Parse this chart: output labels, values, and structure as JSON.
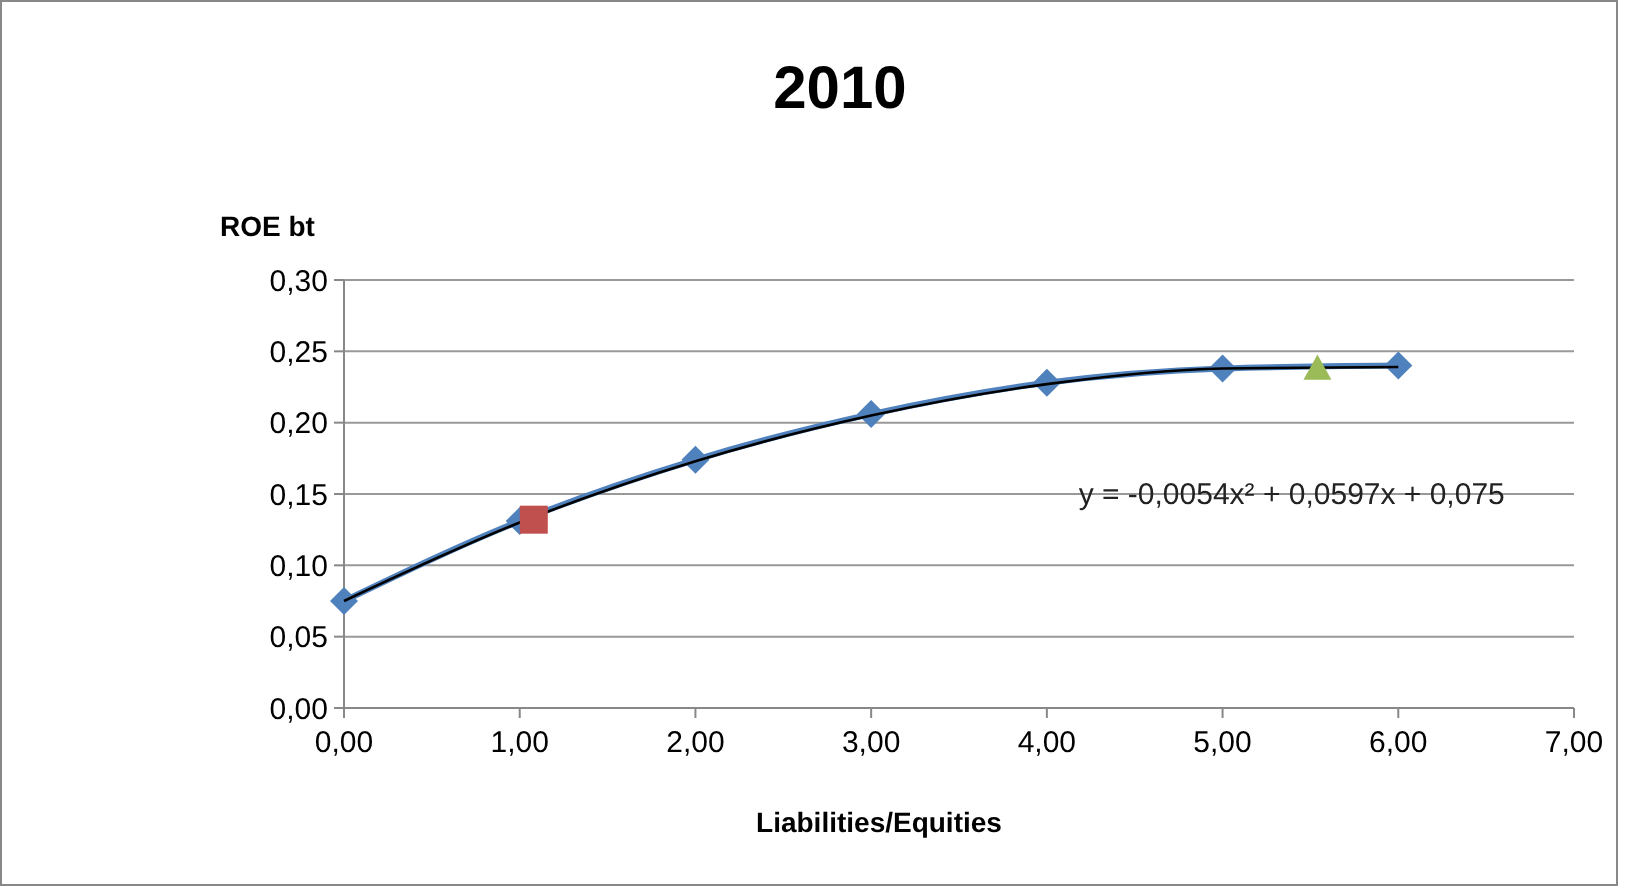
{
  "chart_data": {
    "type": "line",
    "title": "2010",
    "ylabel": "ROE bt",
    "xlabel": "Liabilities/Equities",
    "xlim": [
      0,
      7
    ],
    "ylim": [
      0,
      0.3
    ],
    "xticks": [
      {
        "value": 0,
        "label": "0,00"
      },
      {
        "value": 1,
        "label": "1,00"
      },
      {
        "value": 2,
        "label": "2,00"
      },
      {
        "value": 3,
        "label": "3,00"
      },
      {
        "value": 4,
        "label": "4,00"
      },
      {
        "value": 5,
        "label": "5,00"
      },
      {
        "value": 6,
        "label": "6,00"
      },
      {
        "value": 7,
        "label": "7,00"
      }
    ],
    "yticks": [
      {
        "value": 0,
        "label": "0,00"
      },
      {
        "value": 0.05,
        "label": "0,05"
      },
      {
        "value": 0.1,
        "label": "0,10"
      },
      {
        "value": 0.15,
        "label": "0,15"
      },
      {
        "value": 0.2,
        "label": "0,20"
      },
      {
        "value": 0.25,
        "label": "0,25"
      },
      {
        "value": 0.3,
        "label": "0,30"
      }
    ],
    "grid": "y",
    "series": [
      {
        "color": "#4f81bd",
        "marker": "diamond",
        "x": [
          0,
          1,
          2,
          3,
          4,
          5,
          6
        ],
        "values": [
          0.075,
          0.131,
          0.174,
          0.206,
          0.228,
          0.238,
          0.24
        ]
      },
      {
        "color": "#000000",
        "marker": "none",
        "x": [
          0,
          1,
          2,
          3,
          4,
          5,
          6
        ],
        "values": [
          0.075,
          0.13,
          0.173,
          0.205,
          0.227,
          0.238,
          0.239
        ]
      },
      {
        "type": "scatter",
        "color": "#c0504d",
        "marker": "square",
        "x": [
          1.08
        ],
        "values": [
          0.132
        ]
      },
      {
        "type": "scatter",
        "color": "#9bbb59",
        "marker": "triangle",
        "x": [
          5.54
        ],
        "values": [
          0.238
        ]
      }
    ],
    "annotations": [
      "y = -0,0054x² + 0,0597x + 0,075"
    ]
  }
}
